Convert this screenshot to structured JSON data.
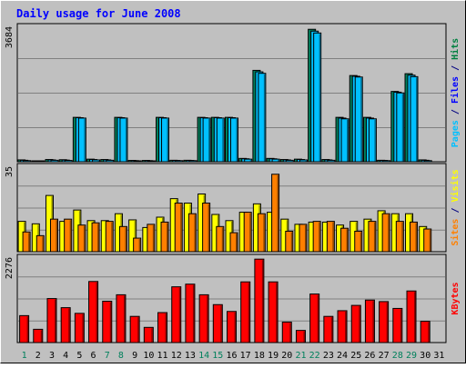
{
  "chart_data": {
    "type": "bar",
    "title": "Daily usage for June 2008",
    "categories": [
      "1",
      "2",
      "3",
      "4",
      "5",
      "6",
      "7",
      "8",
      "9",
      "10",
      "11",
      "12",
      "13",
      "14",
      "15",
      "16",
      "17",
      "18",
      "19",
      "20",
      "21",
      "22",
      "23",
      "24",
      "25",
      "26",
      "27",
      "28",
      "29",
      "30",
      "31"
    ],
    "weekend_days": [
      "1",
      "7",
      "8",
      "14",
      "15",
      "21",
      "22",
      "28",
      "29"
    ],
    "panels": [
      {
        "name": "hits-files-pages",
        "max_label": "3684",
        "ylim": [
          0,
          3684
        ],
        "axis_label": [
          {
            "text": "Pages",
            "color": "#00c0ff"
          },
          {
            "text": " / ",
            "color": "#000080"
          },
          {
            "text": "Files",
            "color": "#0000ff"
          },
          {
            "text": " / ",
            "color": "#000080"
          },
          {
            "text": "Hits",
            "color": "#008040"
          }
        ],
        "series": [
          {
            "name": "Hits",
            "color": "#00805c",
            "values": [
              50,
              20,
              60,
              55,
              1200,
              70,
              60,
              1200,
              35,
              35,
              1200,
              40,
              40,
              1200,
              1200,
              1200,
              90,
              2470,
              90,
              60,
              70,
              3580,
              60,
              1200,
              2330,
              1200,
              40,
              1900,
              2380,
              50,
              0
            ]
          },
          {
            "name": "Files",
            "color": "#00c0ff",
            "values": [
              40,
              15,
              50,
              45,
              1190,
              60,
              50,
              1190,
              30,
              30,
              1190,
              35,
              35,
              1190,
              1190,
              1190,
              80,
              2430,
              80,
              50,
              60,
              3530,
              50,
              1180,
              2310,
              1180,
              35,
              1880,
              2340,
              40,
              0
            ]
          },
          {
            "name": "Pages",
            "color": "#00c0ff",
            "values": [
              30,
              10,
              40,
              35,
              1180,
              50,
              40,
              1180,
              25,
              25,
              1180,
              30,
              30,
              1180,
              1180,
              1180,
              70,
              2390,
              70,
              40,
              50,
              3480,
              40,
              1160,
              2290,
              1160,
              30,
              1860,
              2300,
              30,
              0
            ]
          }
        ]
      },
      {
        "name": "visits-sites",
        "max_label": "35",
        "ylim": [
          0,
          35
        ],
        "axis_label": [
          {
            "text": "Sites",
            "color": "#ff8000"
          },
          {
            "text": " / ",
            "color": "#000080"
          },
          {
            "text": "Visits",
            "color": "#ffff00"
          }
        ],
        "series": [
          {
            "name": "Visits",
            "color": "#ffff00",
            "values": [
              12.3,
              11.3,
              22.8,
              12.3,
              16.9,
              12.6,
              12.6,
              15.4,
              12.9,
              9.8,
              14.0,
              21.5,
              19.7,
              23.4,
              15.1,
              12.6,
              16.0,
              19.4,
              16.0,
              13.2,
              11.1,
              12.0,
              12.0,
              10.8,
              12.3,
              13.2,
              16.6,
              15.4,
              15.4,
              10.2,
              0
            ]
          },
          {
            "name": "Sites",
            "color": "#ff8000",
            "values": [
              8.0,
              6.5,
              13.2,
              13.2,
              10.8,
              11.7,
              12.3,
              10.2,
              5.5,
              11.1,
              12.0,
              19.7,
              15.4,
              19.7,
              10.2,
              7.7,
              16.0,
              15.4,
              31.4,
              8.3,
              11.1,
              12.3,
              12.3,
              9.5,
              8.3,
              12.3,
              15.4,
              12.3,
              12.0,
              9.2,
              0
            ]
          }
        ]
      },
      {
        "name": "kbytes",
        "max_label": "2276",
        "ylim": [
          0,
          2276
        ],
        "axis_label": [
          {
            "text": "KBytes",
            "color": "#ff0000"
          }
        ],
        "series": [
          {
            "name": "KBytes",
            "color": "#ff0000",
            "values": [
              710,
              350,
              1160,
              920,
              770,
              1610,
              1090,
              1260,
              690,
              400,
              790,
              1470,
              1540,
              1260,
              1000,
              820,
              1600,
              2200,
              1600,
              540,
              320,
              1280,
              690,
              840,
              980,
              1120,
              1080,
              900,
              1360,
              560,
              0
            ]
          }
        ]
      }
    ]
  }
}
